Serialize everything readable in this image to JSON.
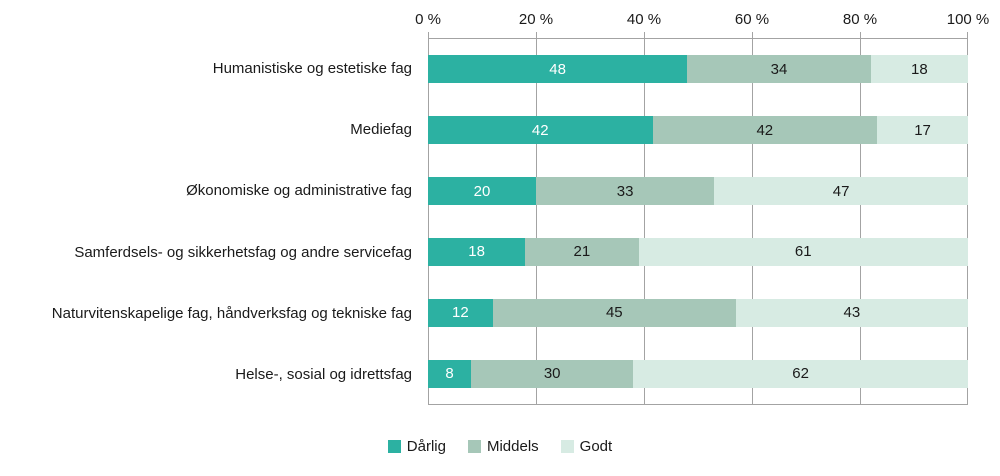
{
  "chart_data": {
    "type": "bar",
    "orientation": "horizontal",
    "stacked": true,
    "title": "",
    "categories": [
      "Humanistiske og estetiske fag",
      "Mediefag",
      "Økonomiske og administrative fag",
      "Samferdsels- og sikkerhetsfag og andre servicefag",
      "Naturvitenskapelige fag, håndverksfag og tekniske fag",
      "Helse-, sosial og idrettsfag"
    ],
    "series": [
      {
        "name": "Dårlig",
        "color": "#2cb1a2",
        "label_color": "#ffffff",
        "values": [
          48,
          42,
          20,
          18,
          12,
          8
        ]
      },
      {
        "name": "Middels",
        "color": "#a6c7b8",
        "label_color": "#1a1a1a",
        "values": [
          34,
          42,
          33,
          21,
          45,
          30
        ]
      },
      {
        "name": "Godt",
        "color": "#d7ebe3",
        "label_color": "#1a1a1a",
        "values": [
          18,
          17,
          47,
          61,
          43,
          62
        ]
      }
    ],
    "x_axis": {
      "position": "top",
      "min": 0,
      "max": 100,
      "tick_labels": [
        "0 %",
        "20 %",
        "40 %",
        "60 %",
        "80 %",
        "100 %"
      ]
    },
    "legend": {
      "position": "bottom",
      "entries": [
        "Dårlig",
        "Middels",
        "Godt"
      ]
    },
    "grid": true,
    "grid_color": "#a3a3a3"
  }
}
